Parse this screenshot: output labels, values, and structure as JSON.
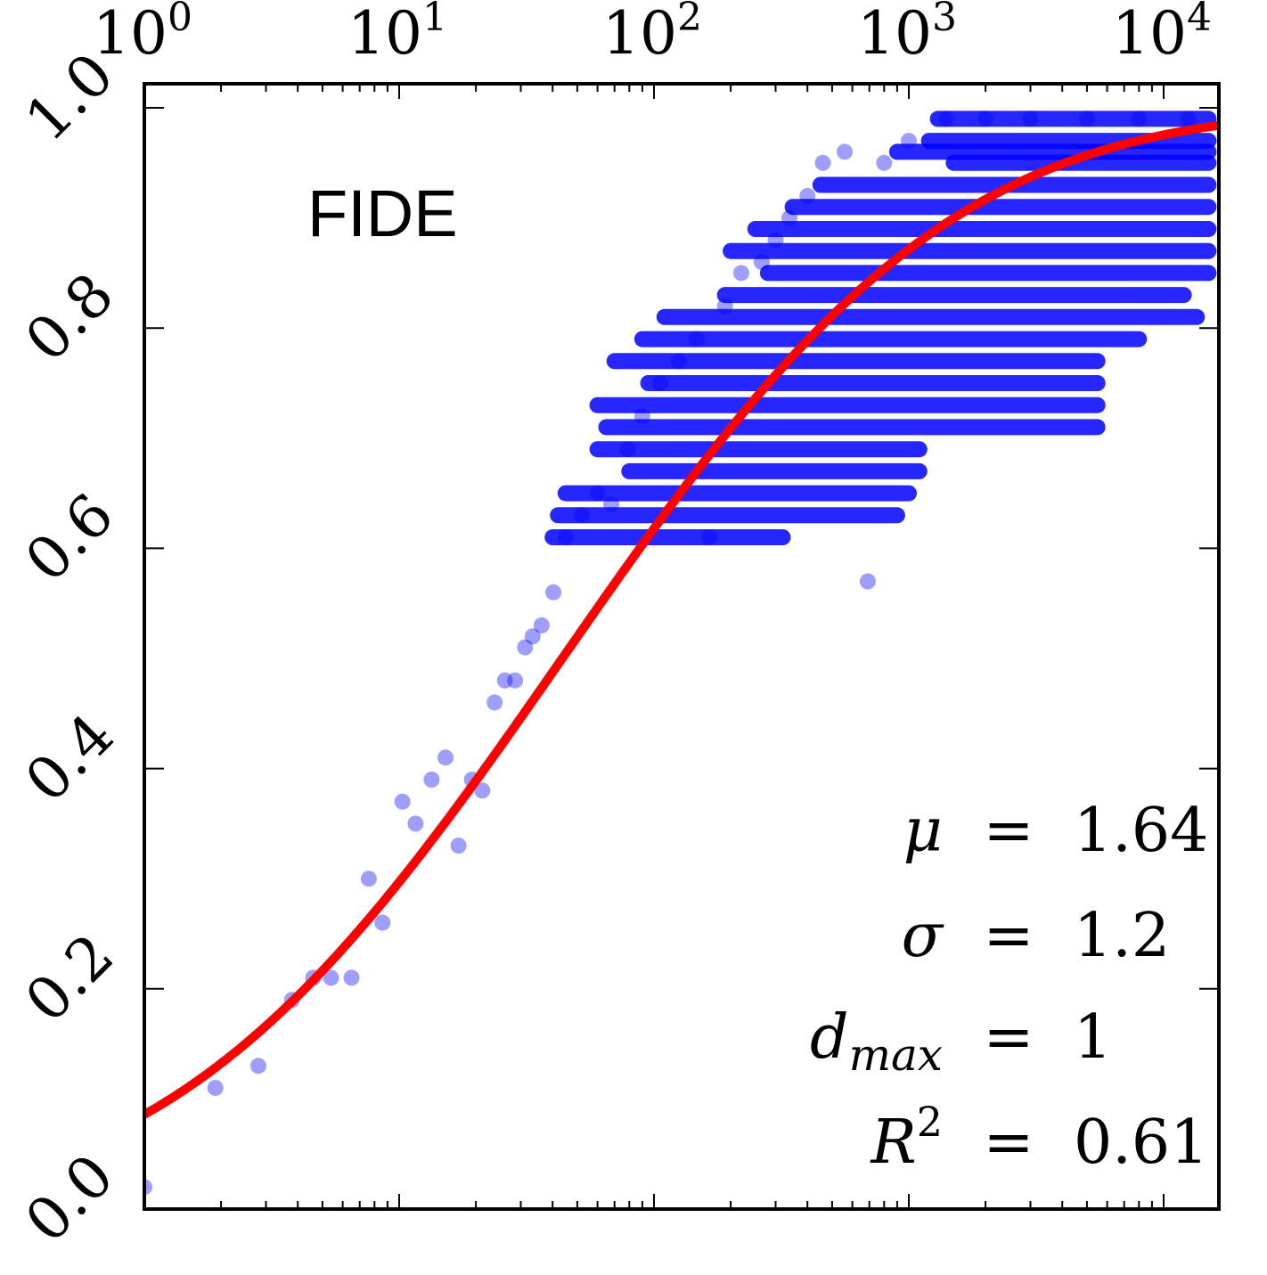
{
  "chart_data": {
    "type": "scatter",
    "title": "",
    "xlabel": "",
    "ylabel": "",
    "xscale": "log",
    "xlim": [
      1,
      17000
    ],
    "ylim": [
      0.0,
      1.0
    ],
    "x_ticks": [
      1,
      10,
      100,
      1000,
      10000
    ],
    "x_tick_labels": [
      {
        "base": "10",
        "exp": "0"
      },
      {
        "base": "10",
        "exp": "1"
      },
      {
        "base": "10",
        "exp": "2"
      },
      {
        "base": "10",
        "exp": "3"
      },
      {
        "base": "10",
        "exp": "4"
      }
    ],
    "x_axis_position": "top",
    "y_ticks": [
      0.0,
      0.2,
      0.4,
      0.6,
      0.8,
      1.0
    ],
    "y_tick_labels": [
      "0.0",
      "0.2",
      "0.4",
      "0.6",
      "0.8",
      "1.0"
    ],
    "y_tick_label_rotation_deg": -45,
    "grid": false,
    "annotation": "FIDE",
    "scatter": {
      "color": "#0000ff",
      "opacity": 0.38,
      "points": [
        [
          1.0,
          0.02
        ],
        [
          1.9,
          0.11
        ],
        [
          2.8,
          0.13
        ],
        [
          3.8,
          0.19
        ],
        [
          4.6,
          0.21
        ],
        [
          5.4,
          0.21
        ],
        [
          6.5,
          0.21
        ],
        [
          7.6,
          0.3
        ],
        [
          8.6,
          0.26
        ],
        [
          10.3,
          0.37
        ],
        [
          11.6,
          0.35
        ],
        [
          13.4,
          0.39
        ],
        [
          15.2,
          0.41
        ],
        [
          17.1,
          0.33
        ],
        [
          19.3,
          0.39
        ],
        [
          21.2,
          0.38
        ],
        [
          23.7,
          0.46
        ],
        [
          26.0,
          0.48
        ],
        [
          28.5,
          0.48
        ],
        [
          31.2,
          0.51
        ],
        [
          33.4,
          0.52
        ],
        [
          36.2,
          0.53
        ],
        [
          40.3,
          0.56
        ],
        [
          45.0,
          0.61
        ],
        [
          52.0,
          0.63
        ],
        [
          60.0,
          0.65
        ],
        [
          68.0,
          0.64
        ],
        [
          79.0,
          0.69
        ],
        [
          90.0,
          0.72
        ],
        [
          106.0,
          0.75
        ],
        [
          125.0,
          0.77
        ],
        [
          147.0,
          0.79
        ],
        [
          165.0,
          0.61
        ],
        [
          190.0,
          0.82
        ],
        [
          220.0,
          0.85
        ],
        [
          265.0,
          0.86
        ],
        [
          300.0,
          0.88
        ],
        [
          340.0,
          0.9
        ],
        [
          400.0,
          0.92
        ],
        [
          460.0,
          0.95
        ],
        [
          560.0,
          0.96
        ],
        [
          690.0,
          0.57
        ],
        [
          800.0,
          0.95
        ],
        [
          1000.0,
          0.97
        ],
        [
          1400.0,
          0.99
        ],
        [
          2000.0,
          0.99
        ],
        [
          3000.0,
          0.99
        ],
        [
          5000.0,
          0.99
        ],
        [
          8000.0,
          0.99
        ],
        [
          12500.0,
          0.99
        ]
      ],
      "bands": [
        {
          "y": 0.99,
          "x_from": 1300,
          "x_to": 15000
        },
        {
          "y": 0.97,
          "x_from": 1200,
          "x_to": 15000
        },
        {
          "y": 0.96,
          "x_from": 900,
          "x_to": 15000
        },
        {
          "y": 0.95,
          "x_from": 1500,
          "x_to": 15000
        },
        {
          "y": 0.93,
          "x_from": 450,
          "x_to": 15000
        },
        {
          "y": 0.91,
          "x_from": 350,
          "x_to": 15000
        },
        {
          "y": 0.89,
          "x_from": 250,
          "x_to": 15000
        },
        {
          "y": 0.87,
          "x_from": 200,
          "x_to": 15000
        },
        {
          "y": 0.85,
          "x_from": 280,
          "x_to": 15000
        },
        {
          "y": 0.83,
          "x_from": 190,
          "x_to": 12000
        },
        {
          "y": 0.81,
          "x_from": 110,
          "x_to": 13500
        },
        {
          "y": 0.79,
          "x_from": 90,
          "x_to": 8000
        },
        {
          "y": 0.77,
          "x_from": 70,
          "x_to": 5500
        },
        {
          "y": 0.75,
          "x_from": 95,
          "x_to": 5500
        },
        {
          "y": 0.73,
          "x_from": 60,
          "x_to": 5500
        },
        {
          "y": 0.71,
          "x_from": 65,
          "x_to": 5500
        },
        {
          "y": 0.69,
          "x_from": 60,
          "x_to": 1100
        },
        {
          "y": 0.67,
          "x_from": 80,
          "x_to": 1100
        },
        {
          "y": 0.65,
          "x_from": 45,
          "x_to": 1000
        },
        {
          "y": 0.63,
          "x_from": 42,
          "x_to": 900
        },
        {
          "y": 0.61,
          "x_from": 40,
          "x_to": 320
        }
      ]
    },
    "fit_curve": {
      "type": "lognormal_cdf",
      "color": "#ff0000",
      "mu": 1.64,
      "sigma": 1.2,
      "dmax": 1
    },
    "stats": [
      {
        "name": "μ",
        "sub": "",
        "sup": "",
        "value": "1.64"
      },
      {
        "name": "σ",
        "sub": "",
        "sup": "",
        "value": "1.2"
      },
      {
        "name": "d",
        "sub": "max",
        "sup": "",
        "value": "1"
      },
      {
        "name": "R",
        "sub": "",
        "sup": "2",
        "value": "0.61"
      }
    ],
    "equals_sign": "="
  }
}
